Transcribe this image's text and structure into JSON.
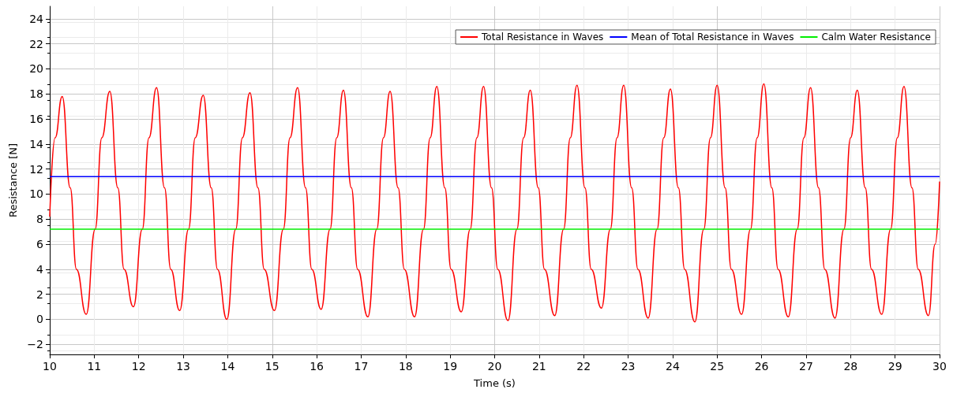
{
  "chart_data": {
    "type": "line",
    "xlabel": "Time (s)",
    "ylabel": "Resistance [N]",
    "xlim": [
      10,
      30
    ],
    "xticks": [
      10,
      11,
      12,
      13,
      14,
      15,
      16,
      17,
      18,
      19,
      20,
      21,
      22,
      23,
      24,
      25,
      26,
      27,
      28,
      29,
      30
    ],
    "ylim": [
      -2.8,
      25
    ],
    "yticks": [
      -2,
      0,
      2,
      4,
      6,
      8,
      10,
      12,
      14,
      16,
      18,
      20,
      22,
      24
    ],
    "grid": true,
    "legend": "top right",
    "marker": "none",
    "line_style": "solid",
    "series": [
      {
        "name": "Total Resistance in Waves",
        "color": "#ff0000",
        "x": [
          10.0,
          10.12,
          10.28,
          10.46,
          10.6,
          10.82,
          11.02,
          11.17,
          11.35,
          11.53,
          11.67,
          11.88,
          12.08,
          12.23,
          12.4,
          12.58,
          12.72,
          12.92,
          13.12,
          13.27,
          13.45,
          13.63,
          13.77,
          13.98,
          14.18,
          14.33,
          14.5,
          14.68,
          14.82,
          15.05,
          15.25,
          15.4,
          15.57,
          15.75,
          15.89,
          16.1,
          16.3,
          16.45,
          16.6,
          16.78,
          16.92,
          17.15,
          17.35,
          17.5,
          17.65,
          17.83,
          17.97,
          18.2,
          18.4,
          18.55,
          18.7,
          18.88,
          19.02,
          19.25,
          19.45,
          19.6,
          19.75,
          19.93,
          20.07,
          20.3,
          20.5,
          20.65,
          20.8,
          20.98,
          21.12,
          21.35,
          21.55,
          21.7,
          21.85,
          22.03,
          22.17,
          22.4,
          22.6,
          22.75,
          22.9,
          23.08,
          23.22,
          23.45,
          23.65,
          23.8,
          23.95,
          24.13,
          24.27,
          24.5,
          24.7,
          24.85,
          25.0,
          25.18,
          25.32,
          25.55,
          25.75,
          25.9,
          26.05,
          26.23,
          26.37,
          26.6,
          26.8,
          26.95,
          27.1,
          27.28,
          27.42,
          27.65,
          27.85,
          28.0,
          28.15,
          28.33,
          28.47,
          28.7,
          28.9,
          29.05,
          29.2,
          29.38,
          29.52,
          29.75,
          29.9,
          30.0
        ],
        "values": [
          8.2,
          14.5,
          17.8,
          10.5,
          4,
          0.4,
          7.2,
          14.5,
          18.2,
          10.5,
          4,
          1.0,
          7.2,
          14.5,
          18.5,
          10.5,
          4,
          0.7,
          7.2,
          14.5,
          17.9,
          10.5,
          4,
          0.0,
          7.2,
          14.5,
          18.1,
          10.5,
          4,
          0.7,
          7.2,
          14.5,
          18.5,
          10.5,
          4,
          0.8,
          7.2,
          14.5,
          18.3,
          10.5,
          4,
          0.2,
          7.2,
          14.5,
          18.2,
          10.5,
          4,
          0.2,
          7.2,
          14.5,
          18.6,
          10.5,
          4,
          0.6,
          7.2,
          14.5,
          18.6,
          10.5,
          4,
          -0.1,
          7.2,
          14.5,
          18.3,
          10.5,
          4,
          0.3,
          7.2,
          14.5,
          18.7,
          10.5,
          4,
          0.9,
          7.2,
          14.5,
          18.7,
          10.5,
          4,
          0.1,
          7.2,
          14.5,
          18.4,
          10.5,
          4,
          -0.2,
          7.2,
          14.5,
          18.7,
          10.5,
          4,
          0.4,
          7.2,
          14.5,
          18.8,
          10.5,
          4,
          0.2,
          7.2,
          14.5,
          18.5,
          10.5,
          4,
          0.1,
          7.2,
          14.5,
          18.3,
          10.5,
          4,
          0.4,
          7.2,
          14.5,
          18.6,
          10.5,
          4,
          0.3,
          6,
          11
        ]
      },
      {
        "name": "Mean of Total Resistance in Waves",
        "color": "#0000ff",
        "x": [
          10,
          30
        ],
        "values": [
          11.4,
          11.4
        ]
      },
      {
        "name": "Calm Water Resistance",
        "color": "#00ee00",
        "x": [
          10,
          30
        ],
        "values": [
          7.2,
          7.2
        ]
      }
    ]
  }
}
